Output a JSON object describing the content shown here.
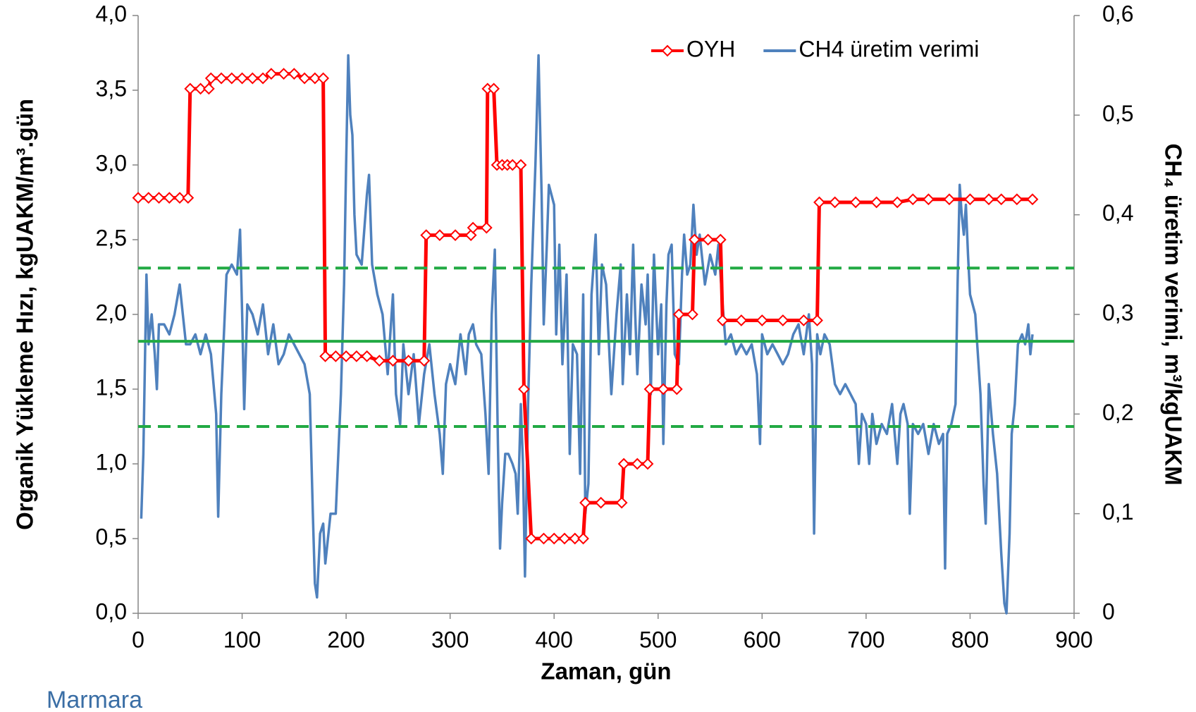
{
  "chart_data": {
    "type": "line",
    "x_label": "Zaman, gün",
    "y_label": "Organik Yükleme Hızı, kgUAKM/m³.gün",
    "y2_label": "CH₄ üretim verimi, m³/kgUAKM",
    "logo_text": "Marmara",
    "xlim": [
      0,
      900
    ],
    "xticks": [
      0,
      100,
      200,
      300,
      400,
      500,
      600,
      700,
      800,
      900
    ],
    "ylim": [
      0,
      4
    ],
    "yticks": [
      {
        "value": 0,
        "label": "0,0"
      },
      {
        "value": 0.5,
        "label": "0,5"
      },
      {
        "value": 1,
        "label": "1,0"
      },
      {
        "value": 1.5,
        "label": "1,5"
      },
      {
        "value": 2,
        "label": "2,0"
      },
      {
        "value": 2.5,
        "label": "2,5"
      },
      {
        "value": 3,
        "label": "3,0"
      },
      {
        "value": 3.5,
        "label": "3,5"
      },
      {
        "value": 4,
        "label": "4,0"
      }
    ],
    "y2lim": [
      0,
      0.6
    ],
    "y2ticks": [
      0,
      {
        "value": 0.1,
        "label": "0,1"
      },
      {
        "value": 0.2,
        "label": "0,2"
      },
      {
        "value": 0.3,
        "label": "0,3"
      },
      {
        "value": 0.4,
        "label": "0,4"
      },
      {
        "value": 0.5,
        "label": "0,5"
      },
      {
        "value": 0.6,
        "label": "0,6"
      }
    ],
    "grid": false,
    "legend": "top-right",
    "hlines": [
      {
        "value": 2.31,
        "color": "#22aa44",
        "dashed": true
      },
      {
        "value": 1.82,
        "color": "#22aa44",
        "dashed": false
      },
      {
        "value": 1.25,
        "color": "#22aa44",
        "dashed": true
      }
    ],
    "series": [
      {
        "name": "OYH",
        "color": "#ff0000",
        "marker": "diamond",
        "x": [
          0,
          10,
          20,
          30,
          40,
          48,
          50,
          60,
          68,
          70,
          80,
          90,
          100,
          110,
          120,
          128,
          140,
          150,
          160,
          170,
          178,
          180,
          190,
          200,
          210,
          220,
          232,
          245,
          260,
          275,
          277,
          290,
          305,
          320,
          322,
          335,
          336,
          342,
          345,
          350,
          355,
          360,
          368,
          371,
          378,
          390,
          400,
          410,
          420,
          428,
          430,
          445,
          465,
          467,
          480,
          490,
          492,
          505,
          518,
          520,
          533,
          535,
          548,
          560,
          562,
          580,
          600,
          620,
          640,
          653,
          655,
          670,
          690,
          710,
          730,
          745,
          760,
          780,
          800,
          818,
          830,
          845,
          860
        ],
        "values": [
          2.78,
          2.78,
          2.78,
          2.78,
          2.78,
          2.78,
          3.51,
          3.51,
          3.51,
          3.58,
          3.58,
          3.58,
          3.58,
          3.58,
          3.58,
          3.61,
          3.61,
          3.61,
          3.58,
          3.58,
          3.58,
          1.72,
          1.72,
          1.72,
          1.72,
          1.72,
          1.69,
          1.69,
          1.69,
          1.69,
          2.53,
          2.53,
          2.53,
          2.53,
          2.58,
          2.58,
          3.51,
          3.51,
          3.0,
          3.0,
          3.0,
          3.0,
          3.0,
          1.5,
          0.5,
          0.5,
          0.5,
          0.5,
          0.5,
          0.5,
          0.74,
          0.74,
          0.74,
          1.0,
          1.0,
          1.0,
          1.5,
          1.5,
          1.5,
          2.0,
          2.0,
          2.5,
          2.5,
          2.5,
          1.96,
          1.96,
          1.96,
          1.96,
          1.96,
          1.96,
          2.75,
          2.75,
          2.75,
          2.75,
          2.75,
          2.77,
          2.77,
          2.77,
          2.77,
          2.77,
          2.77,
          2.77,
          2.77
        ]
      },
      {
        "name": "CH4 üretim verimi",
        "color": "#4f81bd",
        "axis": "y2",
        "x": [
          3,
          5,
          8,
          10,
          13,
          16,
          18,
          20,
          25,
          30,
          35,
          40,
          43,
          46,
          50,
          55,
          60,
          65,
          70,
          75,
          77,
          80,
          85,
          90,
          95,
          98,
          100,
          102,
          105,
          110,
          115,
          120,
          125,
          130,
          135,
          140,
          145,
          150,
          155,
          160,
          165,
          168,
          170,
          172,
          175,
          178,
          180,
          185,
          190,
          195,
          198,
          200,
          202,
          204,
          206,
          208,
          210,
          215,
          220,
          222,
          225,
          230,
          235,
          240,
          245,
          248,
          252,
          255,
          260,
          265,
          270,
          275,
          280,
          285,
          290,
          293,
          296,
          300,
          305,
          310,
          315,
          318,
          322,
          325,
          330,
          334,
          337,
          340,
          343,
          346,
          348,
          350,
          353,
          356,
          360,
          363,
          365,
          368,
          370,
          372,
          375,
          378,
          382,
          385,
          388,
          390,
          393,
          395,
          400,
          402,
          405,
          408,
          412,
          415,
          418,
          422,
          425,
          428,
          430,
          433,
          436,
          440,
          443,
          446,
          450,
          455,
          460,
          464,
          466,
          470,
          473,
          476,
          478,
          480,
          484,
          488,
          490,
          493,
          496,
          500,
          503,
          505,
          508,
          510,
          513,
          516,
          520,
          523,
          525,
          528,
          531,
          534,
          537,
          540,
          545,
          550,
          555,
          558,
          562,
          565,
          570,
          575,
          580,
          585,
          590,
          595,
          598,
          600,
          605,
          610,
          615,
          620,
          625,
          630,
          635,
          640,
          645,
          648,
          650,
          653,
          656,
          660,
          665,
          670,
          675,
          680,
          685,
          690,
          693,
          696,
          700,
          703,
          706,
          710,
          715,
          720,
          725,
          730,
          733,
          736,
          740,
          742,
          745,
          750,
          755,
          760,
          765,
          770,
          774,
          776,
          778,
          782,
          786,
          788,
          790,
          792,
          794,
          796,
          798,
          800,
          805,
          810,
          813,
          815,
          818,
          822,
          826,
          830,
          833,
          835,
          838,
          840,
          843,
          846,
          850,
          853,
          856,
          858,
          860
        ],
        "values": [
          0.095,
          0.16,
          0.34,
          0.27,
          0.3,
          0.26,
          0.225,
          0.29,
          0.29,
          0.28,
          0.3,
          0.33,
          0.3,
          0.27,
          0.27,
          0.28,
          0.26,
          0.28,
          0.26,
          0.2,
          0.097,
          0.22,
          0.34,
          0.35,
          0.34,
          0.385,
          0.3,
          0.205,
          0.31,
          0.3,
          0.28,
          0.31,
          0.26,
          0.29,
          0.25,
          0.26,
          0.28,
          0.27,
          0.26,
          0.25,
          0.22,
          0.1,
          0.03,
          0.016,
          0.08,
          0.09,
          0.05,
          0.1,
          0.1,
          0.22,
          0.33,
          0.45,
          0.56,
          0.5,
          0.48,
          0.4,
          0.36,
          0.35,
          0.42,
          0.44,
          0.35,
          0.32,
          0.3,
          0.24,
          0.32,
          0.22,
          0.19,
          0.27,
          0.22,
          0.26,
          0.19,
          0.24,
          0.27,
          0.22,
          0.18,
          0.14,
          0.23,
          0.25,
          0.23,
          0.28,
          0.24,
          0.28,
          0.29,
          0.27,
          0.26,
          0.2,
          0.14,
          0.3,
          0.365,
          0.17,
          0.065,
          0.11,
          0.16,
          0.16,
          0.15,
          0.14,
          0.1,
          0.21,
          0.15,
          0.037,
          0.21,
          0.33,
          0.45,
          0.56,
          0.42,
          0.29,
          0.37,
          0.43,
          0.41,
          0.28,
          0.37,
          0.25,
          0.34,
          0.16,
          0.27,
          0.26,
          0.14,
          0.32,
          0.1,
          0.13,
          0.32,
          0.38,
          0.26,
          0.35,
          0.33,
          0.22,
          0.3,
          0.35,
          0.23,
          0.32,
          0.26,
          0.37,
          0.3,
          0.24,
          0.33,
          0.29,
          0.34,
          0.22,
          0.36,
          0.26,
          0.31,
          0.17,
          0.31,
          0.36,
          0.37,
          0.26,
          0.25,
          0.34,
          0.38,
          0.34,
          0.35,
          0.41,
          0.36,
          0.38,
          0.33,
          0.36,
          0.34,
          0.37,
          0.31,
          0.27,
          0.28,
          0.26,
          0.27,
          0.26,
          0.27,
          0.24,
          0.17,
          0.28,
          0.26,
          0.27,
          0.26,
          0.25,
          0.26,
          0.28,
          0.29,
          0.26,
          0.3,
          0.25,
          0.08,
          0.28,
          0.26,
          0.28,
          0.27,
          0.23,
          0.22,
          0.23,
          0.22,
          0.21,
          0.15,
          0.2,
          0.19,
          0.15,
          0.2,
          0.17,
          0.19,
          0.18,
          0.21,
          0.15,
          0.2,
          0.21,
          0.19,
          0.1,
          0.19,
          0.18,
          0.19,
          0.16,
          0.19,
          0.17,
          0.18,
          0.045,
          0.18,
          0.19,
          0.21,
          0.33,
          0.43,
          0.4,
          0.38,
          0.41,
          0.36,
          0.32,
          0.3,
          0.22,
          0.13,
          0.09,
          0.23,
          0.18,
          0.14,
          0.06,
          0.01,
          0.0,
          0.08,
          0.18,
          0.21,
          0.27,
          0.28,
          0.27,
          0.29,
          0.26,
          0.28
        ]
      }
    ]
  }
}
